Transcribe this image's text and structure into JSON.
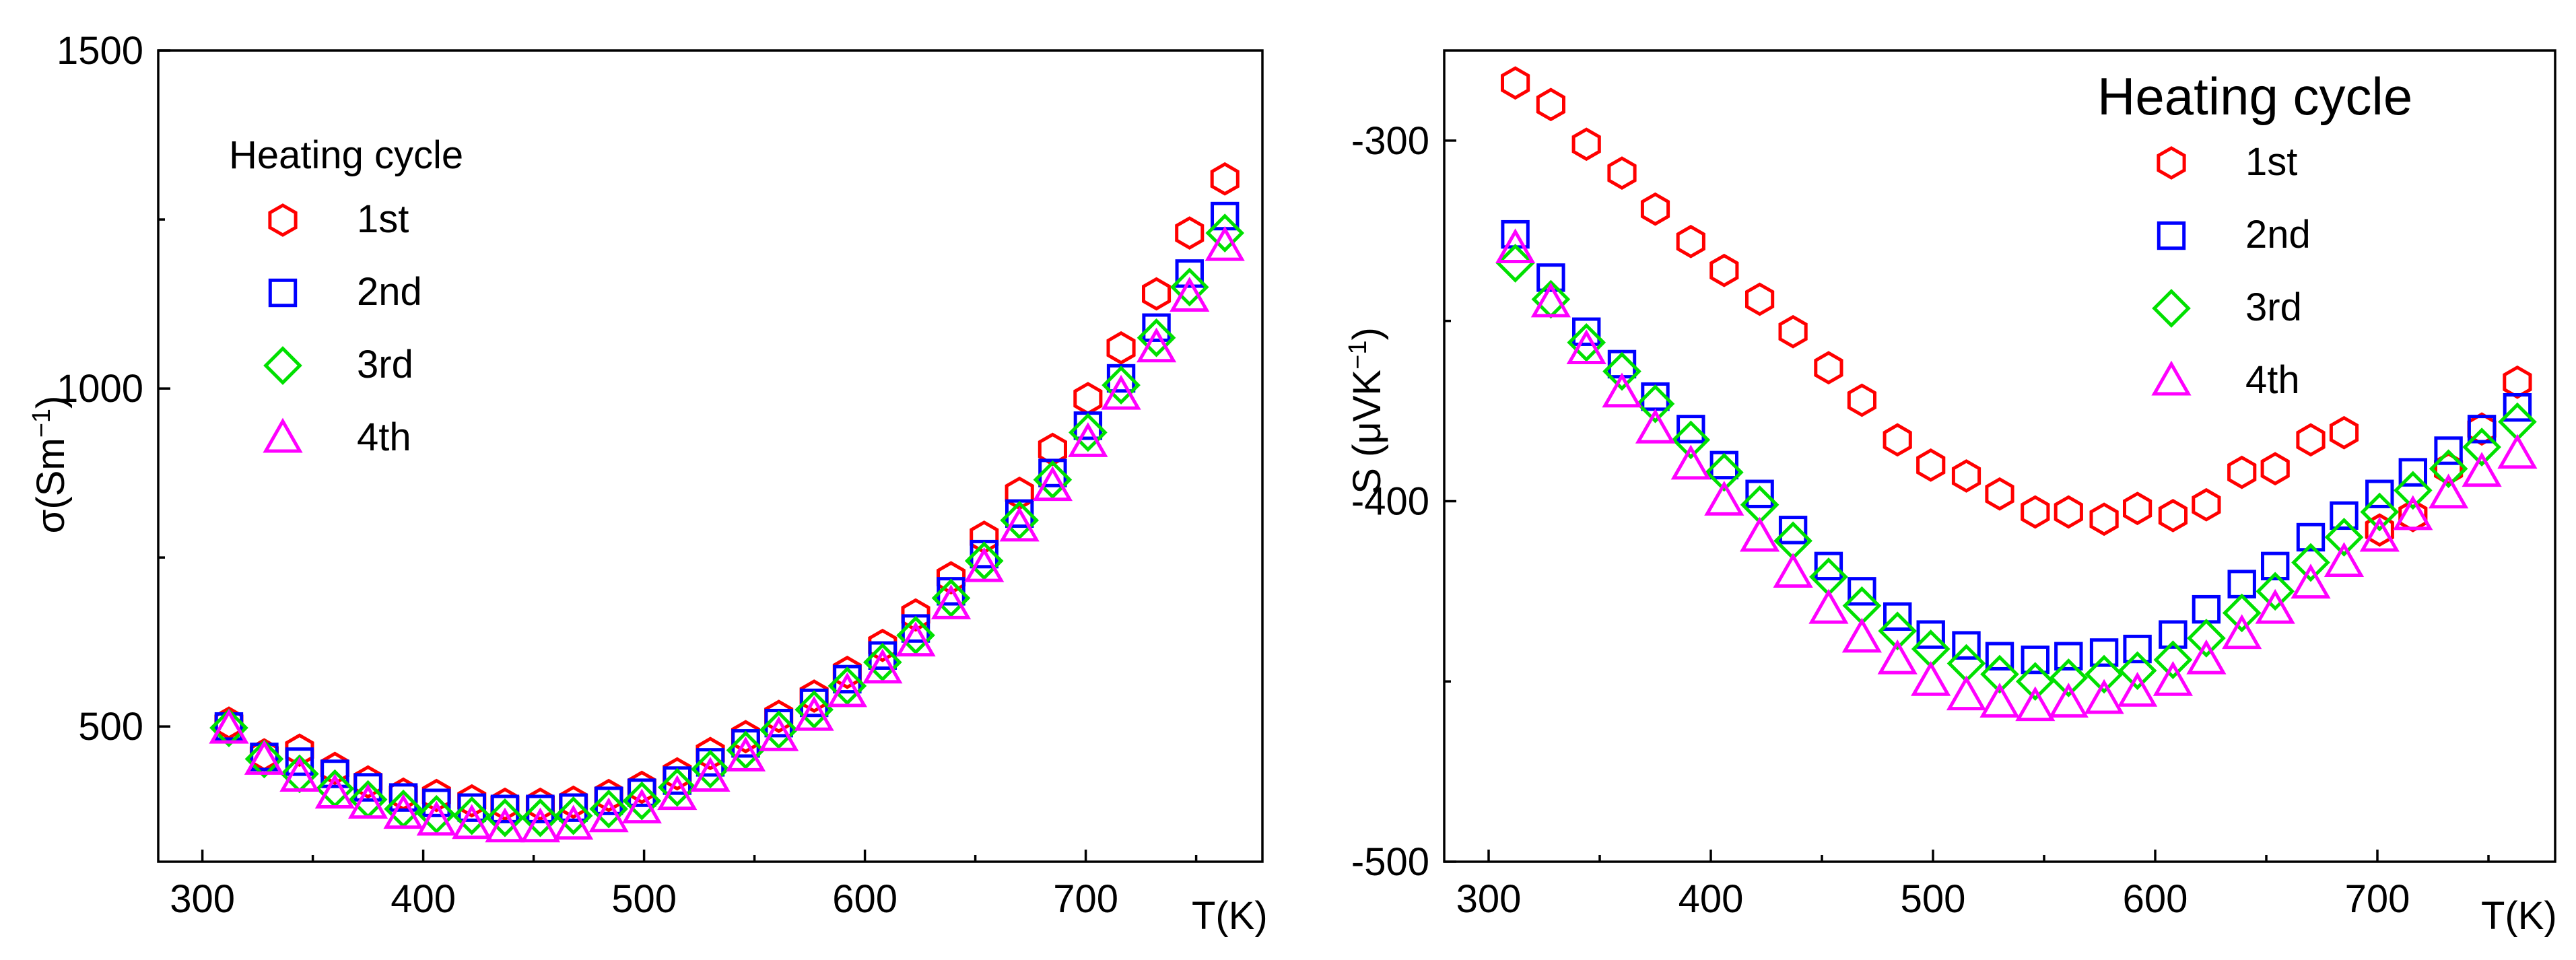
{
  "colors": {
    "1st": "#ff0000",
    "2nd": "#0000ff",
    "3rd": "#00e000",
    "4th": "#ff00ff"
  },
  "chart_data": [
    {
      "type": "scatter",
      "id": "conductivity",
      "xlabel": "T(K)",
      "ylabel": "σ(Sm−1)",
      "ylabel_base": "σ(Sm",
      "ylabel_sup": "−1",
      "ylabel_close": ")",
      "xlim": [
        280,
        780
      ],
      "ylim": [
        300,
        1500
      ],
      "xticks": [
        300,
        400,
        500,
        600,
        700
      ],
      "yticks": [
        500,
        1000,
        1500
      ],
      "legend": {
        "title": "Heating cycle",
        "position": "top-left"
      },
      "series": [
        {
          "name": "1st",
          "marker": "hexagon",
          "x": [
            312,
            328,
            344,
            360,
            375,
            391,
            406,
            422,
            437,
            453,
            468,
            484,
            499,
            515,
            530,
            546,
            561,
            577,
            592,
            608,
            623,
            639,
            654,
            670,
            685,
            701,
            716,
            732,
            747,
            763
          ],
          "y": [
            505,
            458,
            465,
            438,
            418,
            400,
            398,
            390,
            385,
            385,
            388,
            398,
            410,
            430,
            460,
            485,
            515,
            545,
            580,
            620,
            665,
            720,
            780,
            845,
            910,
            985,
            1060,
            1140,
            1230,
            1310
          ]
        },
        {
          "name": "2nd",
          "marker": "square",
          "x": [
            312,
            328,
            344,
            360,
            375,
            391,
            406,
            422,
            437,
            453,
            468,
            484,
            499,
            515,
            530,
            546,
            561,
            577,
            592,
            608,
            623,
            639,
            654,
            670,
            685,
            701,
            716,
            732,
            747,
            763
          ],
          "y": [
            500,
            455,
            448,
            430,
            410,
            395,
            387,
            380,
            378,
            378,
            380,
            390,
            402,
            420,
            447,
            475,
            505,
            535,
            570,
            605,
            645,
            700,
            755,
            815,
            875,
            945,
            1015,
            1090,
            1170,
            1255
          ]
        },
        {
          "name": "3rd",
          "marker": "diamond",
          "x": [
            312,
            328,
            344,
            360,
            375,
            391,
            406,
            422,
            437,
            453,
            468,
            484,
            499,
            515,
            530,
            546,
            561,
            577,
            592,
            608,
            623,
            639,
            654,
            670,
            685,
            701,
            716,
            732,
            747,
            763
          ],
          "y": [
            498,
            452,
            430,
            408,
            392,
            378,
            370,
            368,
            365,
            365,
            368,
            378,
            390,
            410,
            437,
            465,
            495,
            525,
            560,
            595,
            635,
            690,
            745,
            805,
            865,
            935,
            1005,
            1075,
            1150,
            1230
          ]
        },
        {
          "name": "4th",
          "marker": "triangle",
          "x": [
            312,
            328,
            344,
            360,
            375,
            391,
            406,
            422,
            437,
            453,
            468,
            484,
            499,
            515,
            530,
            546,
            561,
            577,
            592,
            608,
            623,
            639,
            654,
            670,
            685,
            701,
            716,
            732,
            747,
            763
          ],
          "y": [
            496,
            450,
            425,
            400,
            385,
            370,
            360,
            355,
            350,
            350,
            354,
            365,
            378,
            398,
            425,
            455,
            485,
            515,
            550,
            585,
            625,
            680,
            735,
            795,
            855,
            920,
            990,
            1060,
            1135,
            1210
          ]
        }
      ]
    },
    {
      "type": "scatter",
      "id": "seebeck",
      "xlabel": "T(K)",
      "ylabel": "S (μVK−1)",
      "ylabel_base": "S (μVK",
      "ylabel_sup": "−1",
      "ylabel_close": ")",
      "xlim": [
        280,
        780
      ],
      "ylim": [
        -500,
        -275
      ],
      "xticks": [
        300,
        400,
        500,
        600,
        700
      ],
      "yticks": [
        -500,
        -400,
        -300
      ],
      "legend": {
        "title": "Heating cycle",
        "position": "top-right"
      },
      "series": [
        {
          "name": "1st",
          "marker": "hexagon",
          "x": [
            312,
            328,
            344,
            360,
            375,
            391,
            406,
            422,
            437,
            453,
            468,
            484,
            499,
            515,
            530,
            546,
            561,
            577,
            592,
            608,
            623,
            639,
            654,
            670,
            685,
            701,
            716,
            732,
            747,
            763
          ],
          "y": [
            -284,
            -290,
            -301,
            -309,
            -319,
            -328,
            -336,
            -344,
            -353,
            -363,
            -372,
            -383,
            -390,
            -393,
            -398,
            -403,
            -403,
            -405,
            -402,
            -404,
            -401,
            -392,
            -391,
            -383,
            -381,
            -408,
            -404,
            -391,
            -380,
            -367
          ]
        },
        {
          "name": "2nd",
          "marker": "square",
          "x": [
            312,
            328,
            344,
            360,
            375,
            391,
            406,
            422,
            437,
            453,
            468,
            484,
            499,
            515,
            530,
            546,
            561,
            577,
            592,
            608,
            623,
            639,
            654,
            670,
            685,
            701,
            716,
            732,
            747,
            763
          ],
          "y": [
            -326,
            -338,
            -353,
            -362,
            -371,
            -380,
            -390,
            -398,
            -408,
            -418,
            -425,
            -432,
            -437,
            -440,
            -443,
            -444,
            -443,
            -442,
            -441,
            -437,
            -430,
            -423,
            -418,
            -410,
            -404,
            -398,
            -392,
            -386,
            -380,
            -374
          ]
        },
        {
          "name": "3rd",
          "marker": "diamond",
          "x": [
            312,
            328,
            344,
            360,
            375,
            391,
            406,
            422,
            437,
            453,
            468,
            484,
            499,
            515,
            530,
            546,
            561,
            577,
            592,
            608,
            623,
            639,
            654,
            670,
            685,
            701,
            716,
            732,
            747,
            763
          ],
          "y": [
            -334,
            -344,
            -356,
            -364,
            -373,
            -383,
            -392,
            -401,
            -411,
            -421,
            -429,
            -436,
            -441,
            -445,
            -448,
            -450,
            -449,
            -448,
            -447,
            -444,
            -438,
            -431,
            -425,
            -417,
            -410,
            -403,
            -397,
            -391,
            -385,
            -378
          ]
        },
        {
          "name": "4th",
          "marker": "triangle",
          "x": [
            312,
            328,
            344,
            360,
            375,
            391,
            406,
            422,
            437,
            453,
            468,
            484,
            499,
            515,
            530,
            546,
            561,
            577,
            592,
            608,
            623,
            639,
            654,
            670,
            685,
            701,
            716,
            732,
            747,
            763
          ],
          "y": [
            -330,
            -345,
            -358,
            -370,
            -380,
            -390,
            -400,
            -410,
            -420,
            -430,
            -438,
            -444,
            -450,
            -454,
            -456,
            -457,
            -456,
            -455,
            -453,
            -450,
            -444,
            -437,
            -430,
            -423,
            -417,
            -410,
            -404,
            -398,
            -392,
            -387
          ]
        }
      ]
    }
  ]
}
